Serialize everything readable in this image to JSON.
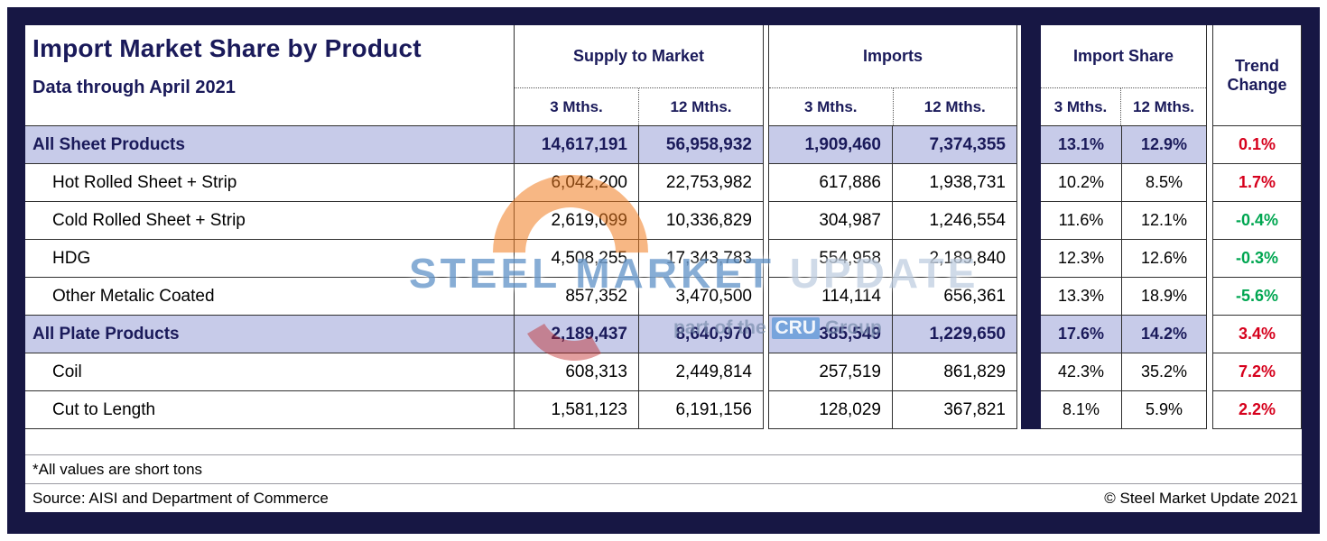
{
  "chart_data": {
    "type": "table",
    "title": "Import Market Share by Product",
    "subtitle": "Data through April 2021",
    "column_groups": [
      {
        "label": "Supply to Market",
        "columns": [
          "3 Mths.",
          "12 Mths."
        ]
      },
      {
        "label": "Imports",
        "columns": [
          "3 Mths.",
          "12 Mths."
        ]
      },
      {
        "label": "Import Share",
        "columns": [
          "3 Mths.",
          "12 Mths."
        ]
      },
      {
        "label": "Trend Change",
        "columns": []
      }
    ],
    "rows": [
      {
        "name": "All Sheet Products",
        "highlight": true,
        "values": [
          "14,617,191",
          "56,958,932",
          "1,909,460",
          "7,374,355",
          "13.1%",
          "12.9%"
        ],
        "trend": "0.1%",
        "trend_color": "red"
      },
      {
        "name": "Hot Rolled Sheet + Strip",
        "highlight": false,
        "values": [
          "6,042,200",
          "22,753,982",
          "617,886",
          "1,938,731",
          "10.2%",
          "8.5%"
        ],
        "trend": "1.7%",
        "trend_color": "red"
      },
      {
        "name": "Cold Rolled Sheet + Strip",
        "highlight": false,
        "values": [
          "2,619,099",
          "10,336,829",
          "304,987",
          "1,246,554",
          "11.6%",
          "12.1%"
        ],
        "trend": "-0.4%",
        "trend_color": "green"
      },
      {
        "name": "HDG",
        "highlight": false,
        "values": [
          "4,508,255",
          "17,343,783",
          "554,958",
          "2,189,840",
          "12.3%",
          "12.6%"
        ],
        "trend": "-0.3%",
        "trend_color": "green"
      },
      {
        "name": "Other Metalic Coated",
        "highlight": false,
        "values": [
          "857,352",
          "3,470,500",
          "114,114",
          "656,361",
          "13.3%",
          "18.9%"
        ],
        "trend": "-5.6%",
        "trend_color": "green"
      },
      {
        "name": "All Plate Products",
        "highlight": true,
        "values": [
          "2,189,437",
          "8,640,970",
          "385,549",
          "1,229,650",
          "17.6%",
          "14.2%"
        ],
        "trend": "3.4%",
        "trend_color": "red"
      },
      {
        "name": "Coil",
        "highlight": false,
        "values": [
          "608,313",
          "2,449,814",
          "257,519",
          "861,829",
          "42.3%",
          "35.2%"
        ],
        "trend": "7.2%",
        "trend_color": "red"
      },
      {
        "name": "Cut to Length",
        "highlight": false,
        "values": [
          "1,581,123",
          "6,191,156",
          "128,029",
          "367,821",
          "8.1%",
          "5.9%"
        ],
        "trend": "2.2%",
        "trend_color": "red"
      }
    ]
  },
  "watermark": {
    "line1": "STEEL MARKET",
    "line1b": "UPDATE",
    "line2a": "part of the ",
    "line2b": "CRU",
    "line2c": " Group"
  },
  "footer": {
    "footnote": "*All values are short tons",
    "source": "Source: AISI and Department of Commerce",
    "copyright": "© Steel Market Update 2021"
  },
  "colors": {
    "frame_navy": "#171744",
    "highlight_lavender": "#c7cbe9",
    "trend_increase_red": "#d6001c",
    "trend_decrease_green": "#00a651"
  }
}
